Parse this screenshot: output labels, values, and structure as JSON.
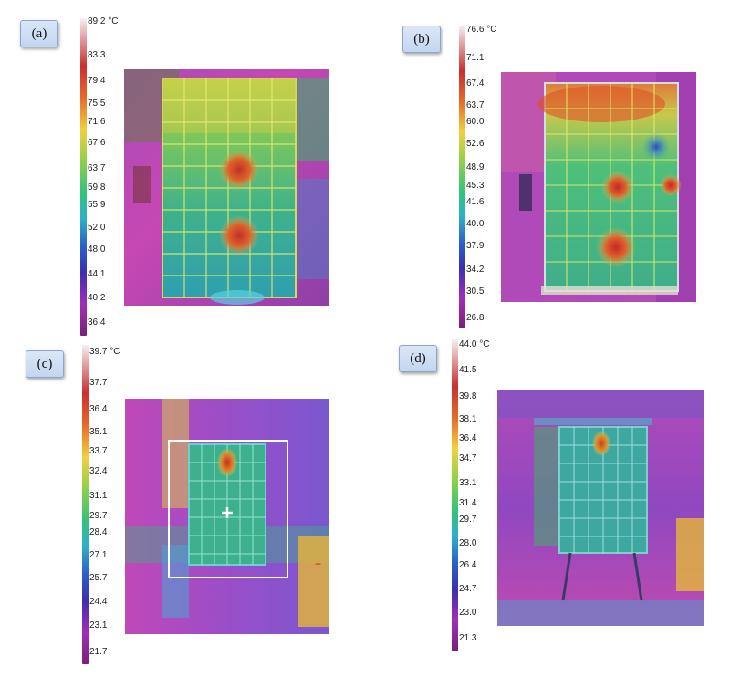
{
  "panels": [
    {
      "label": "(a)",
      "scale_max": "89.2 °C",
      "ticks": [
        "83.3",
        "79.4",
        "75.5",
        "71.6",
        "67.6",
        "63.7",
        "59.8",
        "55.9",
        "52.0",
        "48.0",
        "44.1",
        "40.2",
        "36.4"
      ]
    },
    {
      "label": "(b)",
      "scale_max": "76.6 °C",
      "ticks": [
        "71.1",
        "67.4",
        "63.7",
        "60.0",
        "52.6",
        "48.9",
        "45.3",
        "41.6",
        "40.0",
        "37.9",
        "34.2",
        "30.5",
        "26.8"
      ]
    },
    {
      "label": "(c)",
      "scale_max": "39.7 °C",
      "ticks": [
        "37.7",
        "36.4",
        "35.1",
        "33.7",
        "32.4",
        "31.1",
        "29.7",
        "28.4",
        "27.1",
        "25.7",
        "24.4",
        "23.1",
        "21.7"
      ]
    },
    {
      "label": "(d)",
      "scale_max": "44.0 °C",
      "ticks": [
        "41.5",
        "39.8",
        "38.1",
        "36.4",
        "34.7",
        "33.1",
        "31.4",
        "29.7",
        "28.0",
        "26.4",
        "24.7",
        "23.0",
        "21.3"
      ]
    }
  ]
}
